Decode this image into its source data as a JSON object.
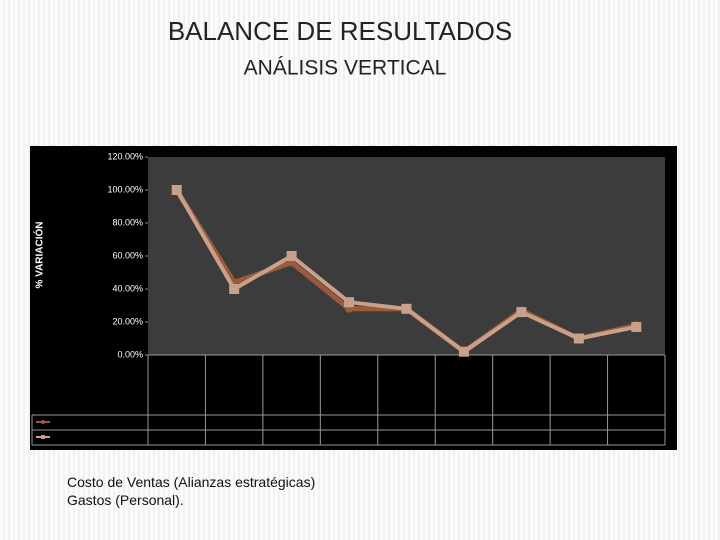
{
  "title": "BALANCE DE RESULTADOS",
  "subtitle": "ANÁLISIS VERTICAL",
  "chart_data": {
    "type": "line",
    "y_label": "% VARIACIÓN",
    "categories": [
      null,
      null,
      null,
      null,
      null,
      null,
      null,
      null,
      null
    ],
    "series": [
      {
        "name": "Costo de Ventas (Alianzas estratégicas)",
        "color": "#9a5b3c",
        "values": [
          100,
          44,
          56,
          28,
          28,
          2,
          27,
          10,
          18
        ]
      },
      {
        "name": "Gastos  (Personal).",
        "color": "#c9a08a",
        "values": [
          100,
          40,
          60,
          32,
          28,
          2,
          26,
          10,
          17
        ]
      }
    ],
    "ylim": [
      0,
      120
    ],
    "yticks": [
      {
        "value": 0,
        "label": "0.00%"
      },
      {
        "value": 20,
        "label": "20.00%"
      },
      {
        "value": 40,
        "label": "40.00%"
      },
      {
        "value": 60,
        "label": "60.00%"
      },
      {
        "value": 80,
        "label": "80.00%"
      },
      {
        "value": 100,
        "label": "100.00%"
      },
      {
        "value": 120,
        "label": "120.00%"
      }
    ],
    "grid": false
  }
}
